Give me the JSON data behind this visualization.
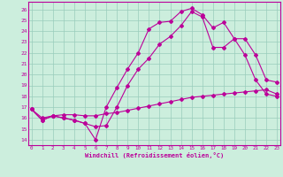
{
  "xlabel": "Windchill (Refroidissement éolien,°C)",
  "bg_color": "#cceedd",
  "line_color": "#bb0099",
  "grid_color": "#99ccbb",
  "x_ticks": [
    0,
    1,
    2,
    3,
    4,
    5,
    6,
    7,
    8,
    9,
    10,
    11,
    12,
    13,
    14,
    15,
    16,
    17,
    18,
    19,
    20,
    21,
    22,
    23
  ],
  "y_ticks": [
    14,
    15,
    16,
    17,
    18,
    19,
    20,
    21,
    22,
    23,
    24,
    25,
    26
  ],
  "xlim": [
    -0.3,
    23.3
  ],
  "ylim": [
    13.5,
    26.7
  ],
  "line1_x": [
    0,
    1,
    2,
    3,
    4,
    5,
    6,
    7,
    8,
    9,
    10,
    11,
    12,
    13,
    14,
    15,
    16,
    17,
    18,
    19,
    20,
    21,
    22,
    23
  ],
  "line1_y": [
    16.8,
    15.8,
    16.2,
    16.0,
    15.8,
    15.5,
    14.0,
    17.0,
    18.8,
    20.5,
    22.0,
    24.2,
    24.8,
    24.9,
    25.8,
    26.1,
    25.5,
    24.3,
    24.8,
    23.3,
    21.8,
    19.5,
    18.2,
    18.0
  ],
  "line2_x": [
    0,
    1,
    2,
    3,
    4,
    5,
    6,
    7,
    8,
    9,
    10,
    11,
    12,
    13,
    14,
    15,
    16,
    17,
    18,
    19,
    20,
    21,
    22,
    23
  ],
  "line2_y": [
    16.8,
    15.8,
    16.2,
    16.0,
    15.8,
    15.5,
    15.2,
    15.3,
    17.0,
    19.0,
    20.5,
    21.5,
    22.8,
    23.5,
    24.5,
    25.8,
    25.3,
    22.5,
    22.5,
    23.3,
    23.3,
    21.8,
    19.5,
    19.3
  ],
  "line3_x": [
    0,
    1,
    2,
    3,
    4,
    5,
    6,
    7,
    8,
    9,
    10,
    11,
    12,
    13,
    14,
    15,
    16,
    17,
    18,
    19,
    20,
    21,
    22,
    23
  ],
  "line3_y": [
    16.8,
    16.0,
    16.2,
    16.3,
    16.3,
    16.2,
    16.2,
    16.4,
    16.5,
    16.7,
    16.9,
    17.1,
    17.3,
    17.5,
    17.7,
    17.9,
    18.0,
    18.1,
    18.2,
    18.3,
    18.4,
    18.5,
    18.6,
    18.2
  ]
}
